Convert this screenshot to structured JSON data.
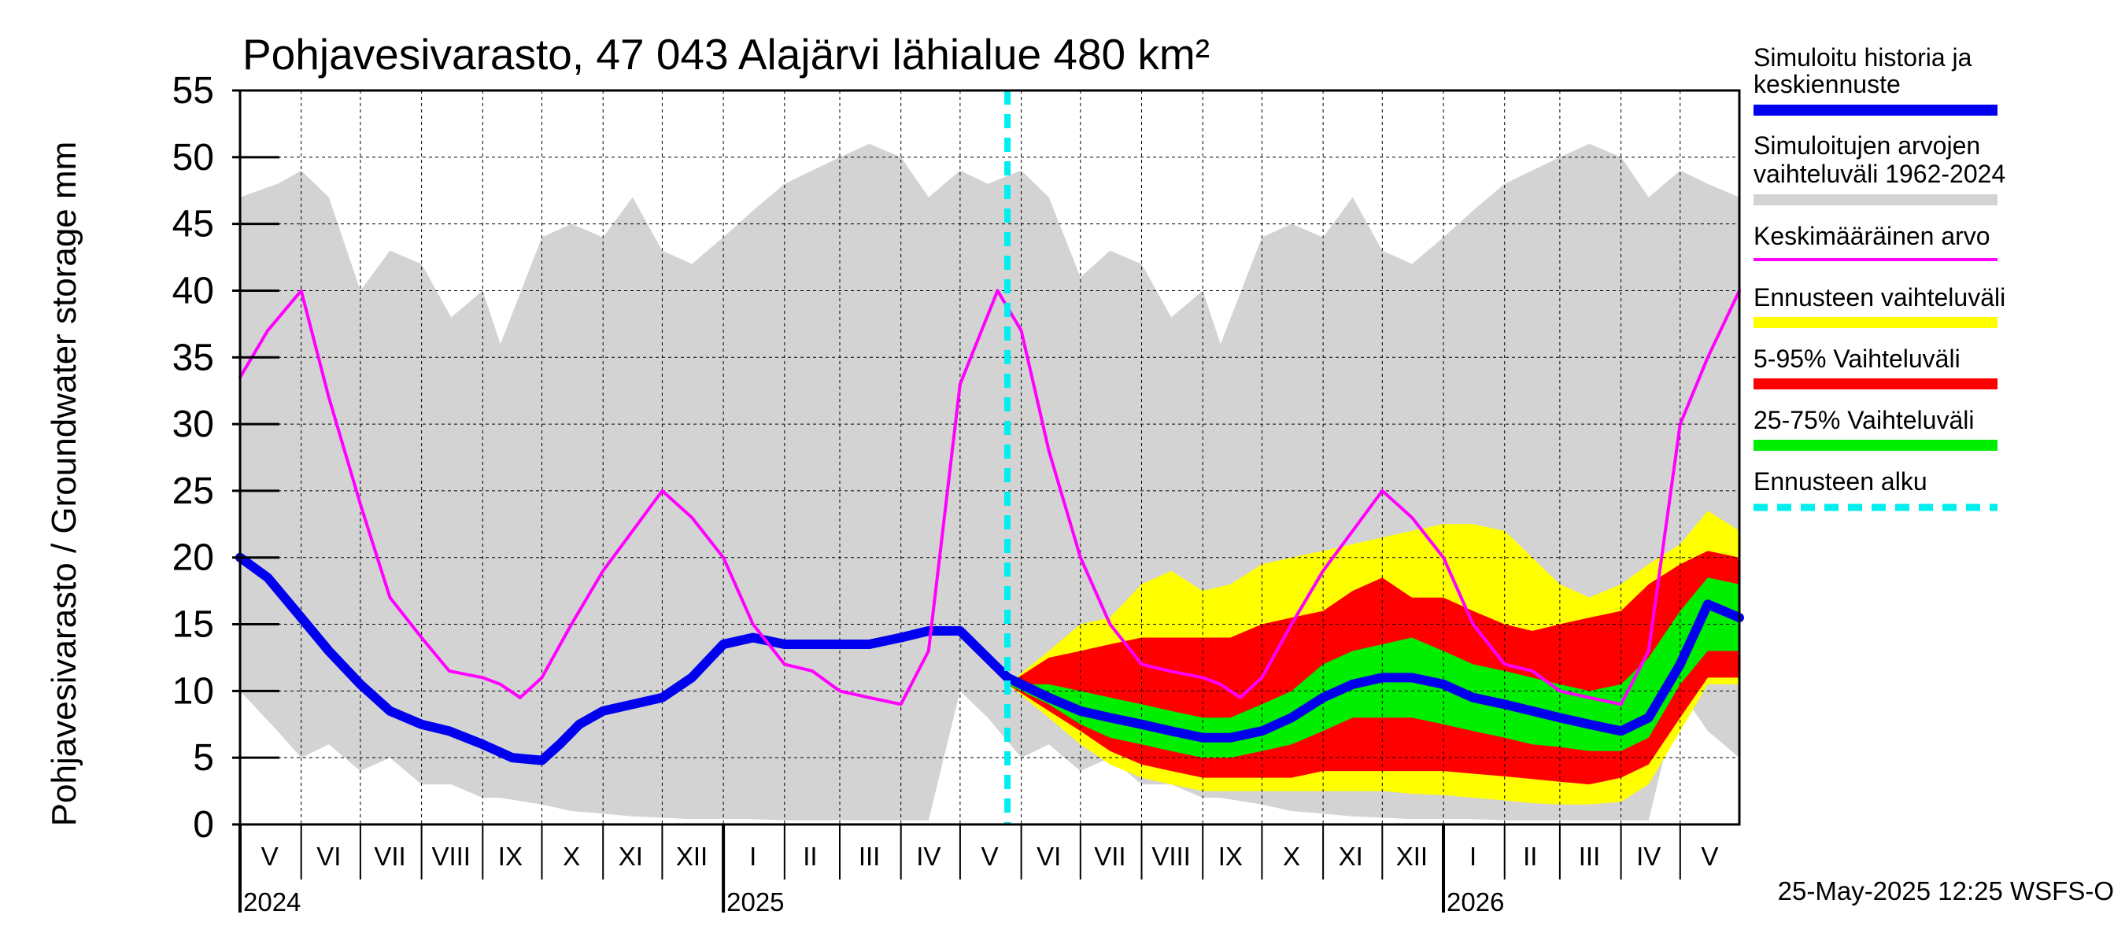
{
  "chart_data": {
    "type": "area",
    "title": "Pohjavesivarasto, 47 043 Alajärvi lähialue 480 km²",
    "ylabel": "Pohjavesivarasto / Groundwater storage   mm",
    "ylim": [
      0,
      55
    ],
    "yticks": [
      "0",
      "5",
      "10",
      "15",
      "20",
      "25",
      "30",
      "35",
      "40",
      "45",
      "50",
      "55"
    ],
    "x_start": "2024-05-01",
    "x_end": "2026-05-31",
    "grid": true,
    "month_labels": [
      {
        "label": "V",
        "date": "2024-05-16"
      },
      {
        "label": "VI",
        "date": "2024-06-15"
      },
      {
        "label": "VII",
        "date": "2024-07-16"
      },
      {
        "label": "VIII",
        "date": "2024-08-16"
      },
      {
        "label": "IX",
        "date": "2024-09-15"
      },
      {
        "label": "X",
        "date": "2024-10-16"
      },
      {
        "label": "XI",
        "date": "2024-11-15"
      },
      {
        "label": "XII",
        "date": "2024-12-16"
      },
      {
        "label": "I",
        "date": "2025-01-16"
      },
      {
        "label": "II",
        "date": "2025-02-14"
      },
      {
        "label": "III",
        "date": "2025-03-16"
      },
      {
        "label": "IV",
        "date": "2025-04-15"
      },
      {
        "label": "V",
        "date": "2025-05-16"
      },
      {
        "label": "VI",
        "date": "2025-06-15"
      },
      {
        "label": "VII",
        "date": "2025-07-16"
      },
      {
        "label": "VIII",
        "date": "2025-08-16"
      },
      {
        "label": "IX",
        "date": "2025-09-15"
      },
      {
        "label": "X",
        "date": "2025-10-16"
      },
      {
        "label": "XI",
        "date": "2025-11-15"
      },
      {
        "label": "XII",
        "date": "2025-12-16"
      },
      {
        "label": "I",
        "date": "2026-01-16"
      },
      {
        "label": "II",
        "date": "2026-02-14"
      },
      {
        "label": "III",
        "date": "2026-03-16"
      },
      {
        "label": "IV",
        "date": "2026-04-15"
      },
      {
        "label": "V",
        "date": "2026-05-16"
      }
    ],
    "year_labels": [
      {
        "label": "2024",
        "date": "2024-05-01"
      },
      {
        "label": "2025",
        "date": "2025-01-01"
      },
      {
        "label": "2026",
        "date": "2026-01-01"
      }
    ],
    "forecast_start": "2025-05-25",
    "series": [
      {
        "name": "Simuloitujen arvojen vaihteluväli 1962-2024",
        "kind": "band",
        "color": "#d3d3d3",
        "x": [
          "2024-05-01",
          "2024-05-20",
          "2024-06-01",
          "2024-06-15",
          "2024-07-01",
          "2024-07-16",
          "2024-08-01",
          "2024-08-16",
          "2024-09-01",
          "2024-09-10",
          "2024-10-01",
          "2024-10-16",
          "2024-11-01",
          "2024-11-16",
          "2024-12-01",
          "2024-12-16",
          "2025-01-01",
          "2025-01-16",
          "2025-02-01",
          "2025-02-15",
          "2025-03-01",
          "2025-03-16",
          "2025-04-01",
          "2025-04-15",
          "2025-05-01",
          "2025-05-15",
          "2025-06-01",
          "2025-06-15",
          "2025-07-01",
          "2025-07-16",
          "2025-08-01",
          "2025-08-16",
          "2025-09-01",
          "2025-09-10",
          "2025-10-01",
          "2025-10-16",
          "2025-11-01",
          "2025-11-16",
          "2025-12-01",
          "2025-12-16",
          "2026-01-01",
          "2026-01-16",
          "2026-02-01",
          "2026-02-15",
          "2026-03-01",
          "2026-03-16",
          "2026-04-01",
          "2026-04-15",
          "2026-05-01",
          "2026-05-15",
          "2026-05-31"
        ],
        "upper": [
          47,
          48,
          49,
          47,
          40,
          43,
          42,
          38,
          40,
          36,
          44,
          45,
          44,
          47,
          43,
          42,
          44,
          46,
          48,
          49,
          50,
          51,
          50,
          47,
          49,
          48,
          49,
          47,
          41,
          43,
          42,
          38,
          40,
          36,
          44,
          45,
          44,
          47,
          43,
          42,
          44,
          46,
          48,
          49,
          50,
          51,
          50,
          47,
          49,
          48,
          47
        ],
        "lower": [
          10,
          7,
          5,
          6,
          4,
          5,
          3,
          3,
          2,
          2,
          1.5,
          1,
          0.8,
          0.6,
          0.5,
          0.4,
          0.4,
          0.4,
          0.3,
          0.3,
          0.3,
          0.3,
          0.3,
          0.3,
          10,
          8,
          5,
          6,
          4,
          5,
          3,
          3,
          2,
          2,
          1.5,
          1,
          0.8,
          0.6,
          0.5,
          0.4,
          0.4,
          0.4,
          0.3,
          0.3,
          0.3,
          0.3,
          0.3,
          0.3,
          10,
          7,
          5
        ]
      },
      {
        "name": "Ennusteen vaihteluväli",
        "kind": "band",
        "color": "#ffff00",
        "x": [
          "2025-05-25",
          "2025-06-15",
          "2025-07-01",
          "2025-07-16",
          "2025-08-01",
          "2025-08-16",
          "2025-09-01",
          "2025-09-15",
          "2025-10-01",
          "2025-10-16",
          "2025-11-01",
          "2025-11-16",
          "2025-12-01",
          "2025-12-16",
          "2026-01-01",
          "2026-01-16",
          "2026-02-01",
          "2026-02-15",
          "2026-03-01",
          "2026-03-16",
          "2026-04-01",
          "2026-04-15",
          "2026-05-01",
          "2026-05-15",
          "2026-05-31"
        ],
        "upper": [
          10.5,
          13,
          15,
          15.5,
          18,
          19,
          17.5,
          18,
          19.5,
          20,
          20.5,
          21,
          21.5,
          22,
          22.5,
          22.5,
          22,
          20,
          18,
          17,
          18,
          19.5,
          21,
          23.5,
          22
        ],
        "lower": [
          10.5,
          8,
          6,
          4.5,
          3.5,
          3,
          2.5,
          2.5,
          2.5,
          2.5,
          2.5,
          2.5,
          2.5,
          2.3,
          2.2,
          2,
          1.8,
          1.6,
          1.5,
          1.5,
          1.7,
          3,
          7,
          10.5,
          10.5
        ]
      },
      {
        "name": "5-95% Vaihteluväli",
        "kind": "band",
        "color": "#ff0000",
        "x": [
          "2025-05-25",
          "2025-06-15",
          "2025-07-01",
          "2025-07-16",
          "2025-08-01",
          "2025-08-16",
          "2025-09-01",
          "2025-09-15",
          "2025-10-01",
          "2025-10-16",
          "2025-11-01",
          "2025-11-16",
          "2025-12-01",
          "2025-12-16",
          "2026-01-01",
          "2026-01-16",
          "2026-02-01",
          "2026-02-15",
          "2026-03-01",
          "2026-03-16",
          "2026-04-01",
          "2026-04-15",
          "2026-05-01",
          "2026-05-15",
          "2026-05-31"
        ],
        "upper": [
          10.5,
          12.5,
          13,
          13.5,
          14,
          14,
          14,
          14,
          15,
          15.5,
          16,
          17.5,
          18.5,
          17,
          17,
          16,
          15,
          14.5,
          15,
          15.5,
          16,
          18,
          19.5,
          20.5,
          20
        ],
        "lower": [
          10.5,
          8.5,
          7,
          5.5,
          4.5,
          4,
          3.5,
          3.5,
          3.5,
          3.5,
          4,
          4,
          4,
          4,
          4,
          3.8,
          3.6,
          3.4,
          3.2,
          3,
          3.5,
          4.5,
          8,
          11,
          11
        ]
      },
      {
        "name": "25-75% Vaihteluväli",
        "kind": "band",
        "color": "#00ee00",
        "x": [
          "2025-05-25",
          "2025-06-15",
          "2025-07-01",
          "2025-07-16",
          "2025-08-01",
          "2025-08-16",
          "2025-09-01",
          "2025-09-15",
          "2025-10-01",
          "2025-10-16",
          "2025-11-01",
          "2025-11-16",
          "2025-12-01",
          "2025-12-16",
          "2026-01-01",
          "2026-01-16",
          "2026-02-01",
          "2026-02-15",
          "2026-03-01",
          "2026-03-16",
          "2026-04-01",
          "2026-04-15",
          "2026-05-01",
          "2026-05-15",
          "2026-05-31"
        ],
        "upper": [
          10.5,
          10.5,
          10,
          9.5,
          9,
          8.5,
          8,
          8,
          9,
          10,
          12,
          13,
          13.5,
          14,
          13,
          12,
          11.5,
          11,
          10.5,
          10,
          10.5,
          12.5,
          16,
          18.5,
          18
        ],
        "lower": [
          10.5,
          9,
          7.5,
          6.5,
          6,
          5.5,
          5,
          5,
          5.5,
          6,
          7,
          8,
          8,
          8,
          7.5,
          7,
          6.5,
          6,
          5.8,
          5.5,
          5.5,
          6.5,
          10.5,
          13,
          13
        ]
      },
      {
        "name": "Simuloitu historia ja keskiennuste",
        "kind": "line",
        "color": "#0000ee",
        "x": [
          "2024-05-01",
          "2024-05-15",
          "2024-06-01",
          "2024-06-15",
          "2024-07-01",
          "2024-07-16",
          "2024-08-01",
          "2024-08-15",
          "2024-09-01",
          "2024-09-16",
          "2024-10-01",
          "2024-10-10",
          "2024-10-20",
          "2024-11-01",
          "2024-11-16",
          "2024-12-01",
          "2024-12-16",
          "2025-01-01",
          "2025-01-16",
          "2025-02-01",
          "2025-02-15",
          "2025-03-01",
          "2025-03-16",
          "2025-04-01",
          "2025-04-15",
          "2025-05-01",
          "2025-05-25",
          "2025-06-15",
          "2025-07-01",
          "2025-07-16",
          "2025-08-01",
          "2025-08-16",
          "2025-09-01",
          "2025-09-15",
          "2025-10-01",
          "2025-10-16",
          "2025-11-01",
          "2025-11-16",
          "2025-12-01",
          "2025-12-16",
          "2026-01-01",
          "2026-01-16",
          "2026-02-01",
          "2026-02-15",
          "2026-03-01",
          "2026-03-16",
          "2026-04-01",
          "2026-04-15",
          "2026-05-01",
          "2026-05-15",
          "2026-05-31"
        ],
        "y": [
          20,
          18.5,
          15.5,
          13,
          10.5,
          8.5,
          7.5,
          7,
          6,
          5,
          4.8,
          6,
          7.5,
          8.5,
          9,
          9.5,
          11,
          13.5,
          14,
          13.5,
          13.5,
          13.5,
          13.5,
          14,
          14.5,
          14.5,
          11,
          9.5,
          8.5,
          8,
          7.5,
          7,
          6.5,
          6.5,
          7,
          8,
          9.5,
          10.5,
          11,
          11,
          10.5,
          9.5,
          9,
          8.5,
          8,
          7.5,
          7,
          8,
          12,
          16.5,
          15.5
        ]
      },
      {
        "name": "Keskimääräinen arvo",
        "kind": "line",
        "color": "#ff00ff",
        "x": [
          "2024-05-01",
          "2024-05-15",
          "2024-06-01",
          "2024-06-15",
          "2024-07-01",
          "2024-07-16",
          "2024-08-01",
          "2024-08-15",
          "2024-09-01",
          "2024-09-10",
          "2024-09-20",
          "2024-10-01",
          "2024-10-16",
          "2024-11-01",
          "2024-11-16",
          "2024-12-01",
          "2024-12-16",
          "2025-01-01",
          "2025-01-16",
          "2025-02-01",
          "2025-02-15",
          "2025-03-01",
          "2025-03-16",
          "2025-04-01",
          "2025-04-15",
          "2025-05-01",
          "2025-05-20",
          "2025-06-01",
          "2025-06-15",
          "2025-07-01",
          "2025-07-16",
          "2025-08-01",
          "2025-08-15",
          "2025-09-01",
          "2025-09-10",
          "2025-09-20",
          "2025-10-01",
          "2025-10-16",
          "2025-11-01",
          "2025-11-16",
          "2025-12-01",
          "2025-12-16",
          "2026-01-01",
          "2026-01-16",
          "2026-02-01",
          "2026-02-15",
          "2026-03-01",
          "2026-03-16",
          "2026-04-01",
          "2026-04-15",
          "2026-05-01",
          "2026-05-15",
          "2026-05-31"
        ],
        "y": [
          33.5,
          37,
          40,
          32,
          24,
          17,
          14,
          11.5,
          11,
          10.5,
          9.5,
          11,
          15,
          19,
          22,
          25,
          23,
          20,
          15,
          12,
          11.5,
          10,
          9.5,
          9,
          13,
          33,
          40,
          37,
          28,
          20,
          15,
          12,
          11.5,
          11,
          10.5,
          9.5,
          11,
          15,
          19,
          22,
          25,
          23,
          20,
          15,
          12,
          11.5,
          10,
          9.5,
          9,
          13,
          30,
          35,
          40
        ]
      }
    ],
    "legend": [
      {
        "label": "Simuloitu historia ja keskiennuste",
        "color": "#0000ee",
        "style": "line"
      },
      {
        "label": "Simuloitujen arvojen vaihteluväli 1962-2024",
        "color": "#d3d3d3",
        "style": "line"
      },
      {
        "label": "Keskimääräinen arvo",
        "color": "#ff00ff",
        "style": "thin"
      },
      {
        "label": "Ennusteen vaihteluväli",
        "color": "#ffff00",
        "style": "line"
      },
      {
        "label": "5-95% Vaihteluväli",
        "color": "#ff0000",
        "style": "line"
      },
      {
        "label": "25-75% Vaihteluväli",
        "color": "#00ee00",
        "style": "line"
      },
      {
        "label": "Ennusteen alku",
        "color": "#00eeee",
        "style": "dashed"
      }
    ],
    "legend_position": "right"
  },
  "footer": "25-May-2025 12:25 WSFS-O"
}
